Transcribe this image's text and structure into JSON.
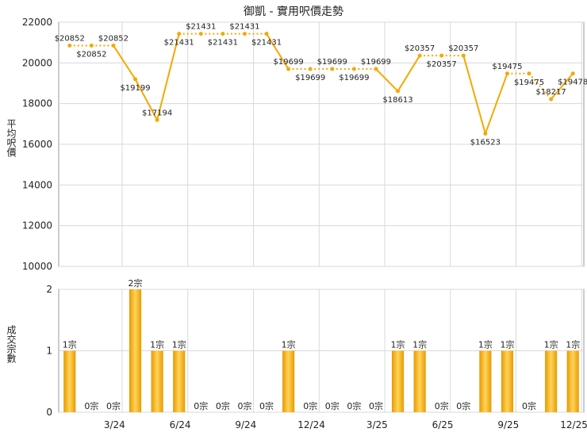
{
  "chart_data": [
    {
      "type": "line",
      "title": "御凱 - 實用呎價走勢",
      "ylabel": "平均呎價",
      "ylim": [
        10000,
        22000
      ],
      "yticks": [
        10000,
        12000,
        14000,
        16000,
        18000,
        20000,
        22000
      ],
      "grid": true,
      "series": [
        {
          "values": [
            20852,
            20852,
            20852,
            19199,
            17194,
            21431,
            21431,
            21431,
            21431,
            21431,
            19699,
            19699,
            19699,
            19699,
            19699,
            18613,
            20357,
            20357,
            20357,
            16523,
            19475,
            19475,
            18217,
            19478
          ],
          "labels": [
            "$20852",
            "$20852",
            "$20852",
            "$19199",
            "$17194",
            "$21431",
            "$21431",
            "$21431",
            "$21431",
            "$21431",
            "$19699",
            "$19699",
            "$19699",
            "$19699",
            "$19699",
            "$18613",
            "$20357",
            "$20357",
            "$20357",
            "$16523",
            "$19475",
            "$19475",
            "$18217",
            "$19478"
          ],
          "interpolated": [
            false,
            true,
            false,
            false,
            false,
            false,
            true,
            false,
            true,
            false,
            false,
            true,
            false,
            true,
            false,
            false,
            false,
            true,
            false,
            false,
            false,
            true,
            false,
            false
          ]
        }
      ],
      "color": "#f5a800"
    },
    {
      "type": "bar",
      "ylabel": "成交宗數",
      "ylim": [
        0,
        2
      ],
      "yticks": [
        0,
        1,
        2
      ],
      "x_ticks": [
        "3/24",
        "6/24",
        "9/24",
        "12/24",
        "3/25",
        "6/25",
        "9/25",
        "12/25"
      ],
      "values": [
        1,
        0,
        0,
        2,
        1,
        1,
        0,
        0,
        0,
        0,
        1,
        0,
        0,
        0,
        0,
        1,
        1,
        0,
        0,
        1,
        1,
        0,
        1,
        1
      ],
      "labels": [
        "1宗",
        "0宗",
        "0宗",
        "2宗",
        "1宗",
        "1宗",
        "0宗",
        "0宗",
        "0宗",
        "0宗",
        "1宗",
        "0宗",
        "0宗",
        "0宗",
        "0宗",
        "1宗",
        "1宗",
        "0宗",
        "0宗",
        "1宗",
        "1宗",
        "0宗",
        "1宗",
        "1宗"
      ],
      "color": "#f0a500"
    }
  ]
}
